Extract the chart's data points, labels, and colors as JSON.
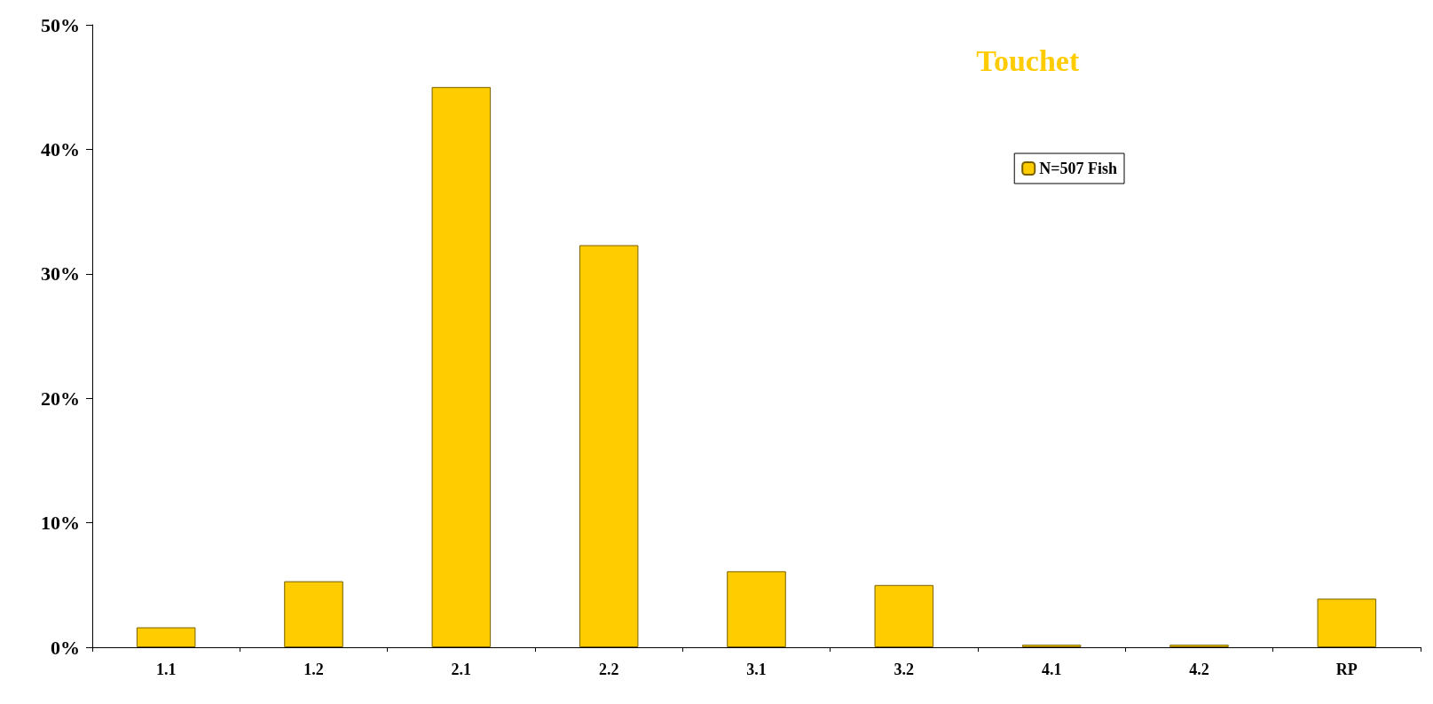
{
  "chart_data": {
    "type": "bar",
    "title": "Touchet",
    "categories": [
      "1.1",
      "1.2",
      "2.1",
      "2.2",
      "3.1",
      "3.2",
      "4.1",
      "4.2",
      "RP"
    ],
    "series": [
      {
        "name": "N=507 Fish",
        "color": "#ffcc00",
        "values": [
          1.6,
          5.3,
          45.0,
          32.3,
          6.1,
          5.0,
          0.2,
          0.2,
          3.9
        ]
      }
    ],
    "ylim": [
      0,
      50
    ],
    "yticks": [
      {
        "value": 0,
        "label": "0%"
      },
      {
        "value": 10,
        "label": "10%"
      },
      {
        "value": 20,
        "label": "20%"
      },
      {
        "value": 30,
        "label": "30%"
      },
      {
        "value": 40,
        "label": "40%"
      },
      {
        "value": 50,
        "label": "50%"
      }
    ],
    "grid": false,
    "legend": "top right"
  }
}
